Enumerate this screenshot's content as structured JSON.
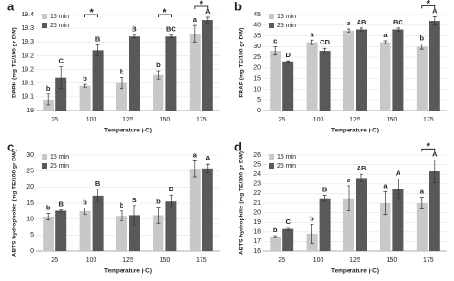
{
  "chart_data": [
    {
      "type": "bar",
      "panel": "a",
      "ylabel": "DPPH (mg TE/100 gr DW)",
      "xlabel": "Temperature (◦C)",
      "categories": [
        "25",
        "100",
        "125",
        "150",
        "175"
      ],
      "ylim": [
        19.0,
        19.35
      ],
      "yticks": [
        19,
        {
          "value": 19.05,
          "label": "19.1"
        },
        {
          "value": 19.1,
          "label": "19.1"
        },
        {
          "value": 19.15,
          "label": "19.2"
        },
        {
          "value": 19.2,
          "label": "19.2"
        },
        {
          "value": 19.25,
          "label": "19.3"
        },
        {
          "value": 19.3,
          "label": "19.3"
        },
        {
          "value": 19.35,
          "label": "19.4"
        }
      ],
      "series": [
        {
          "name": "15 min",
          "color": "#c8c8c8",
          "values": [
            19.04,
            19.09,
            19.1,
            19.13,
            19.28
          ],
          "errors": [
            0.02,
            0.005,
            0.02,
            0.015,
            0.03
          ],
          "letters": [
            "b",
            "b",
            "b",
            "b",
            "a"
          ]
        },
        {
          "name": "25 min",
          "color": "#595959",
          "values": [
            19.12,
            19.22,
            19.27,
            19.27,
            19.33
          ],
          "errors": [
            0.04,
            0.02,
            0.005,
            0.005,
            0.01
          ],
          "letters": [
            "C",
            "B",
            "B",
            "BC",
            "A"
          ]
        }
      ],
      "asterisks": [
        null,
        "*",
        null,
        "*",
        "*"
      ]
    },
    {
      "type": "bar",
      "panel": "b",
      "ylabel": "FRAP (mg TE/100 gr DW)",
      "xlabel": "Temperature (◦C)",
      "categories": [
        "25",
        "100",
        "125",
        "150",
        "175"
      ],
      "ylim": [
        0,
        45
      ],
      "yticks": [
        0,
        5,
        10,
        15,
        20,
        25,
        30,
        35,
        40,
        45
      ],
      "series": [
        {
          "name": "15 min",
          "color": "#c8c8c8",
          "values": [
            28,
            32,
            37.5,
            32,
            30
          ],
          "errors": [
            2,
            1,
            0.7,
            0.7,
            1.2
          ],
          "letters": [
            "c",
            "a",
            "a",
            "a",
            "b"
          ]
        },
        {
          "name": "25 min",
          "color": "#595959",
          "values": [
            23,
            28,
            38,
            38,
            42
          ],
          "errors": [
            0.3,
            1.2,
            0.7,
            0.7,
            2
          ],
          "letters": [
            "D",
            "CD",
            "AB",
            "BC",
            "A"
          ]
        }
      ],
      "asterisks": [
        null,
        null,
        null,
        null,
        "*"
      ]
    },
    {
      "type": "bar",
      "panel": "c",
      "ylabel": "ABTS hydrophobic (mg TE/100 gr DW)",
      "xlabel": "Temperature (◦C)",
      "categories": [
        "25",
        "100",
        "125",
        "150",
        "175"
      ],
      "ylim": [
        0,
        30
      ],
      "yticks": [
        0,
        5,
        10,
        15,
        20,
        25,
        30
      ],
      "series": [
        {
          "name": "15 min",
          "color": "#c8c8c8",
          "values": [
            10.8,
            12.5,
            11,
            11.2,
            25.7
          ],
          "errors": [
            1,
            1,
            1.5,
            2.5,
            2.5
          ],
          "letters": [
            "b",
            "b",
            "b",
            "b",
            "a"
          ]
        },
        {
          "name": "25 min",
          "color": "#595959",
          "values": [
            12.6,
            17.3,
            11.2,
            15.5,
            25.8
          ],
          "errors": [
            0.3,
            2,
            3,
            2,
            1.3
          ],
          "letters": [
            "B",
            "B",
            "B",
            "B",
            "A"
          ]
        }
      ],
      "asterisks": [
        null,
        null,
        null,
        null,
        null
      ]
    },
    {
      "type": "bar",
      "panel": "d",
      "ylabel": "ABTS hydrophilic (mg TE/100 gr DW)",
      "xlabel": "Temperature (◦C)",
      "categories": [
        "25",
        "100",
        "125",
        "150",
        "175"
      ],
      "ylim": [
        16,
        26
      ],
      "yticks": [
        16,
        17,
        18,
        19,
        20,
        21,
        22,
        23,
        24,
        25,
        26
      ],
      "series": [
        {
          "name": "15 min",
          "color": "#c8c8c8",
          "values": [
            17.5,
            17.8,
            21.5,
            21,
            21
          ],
          "errors": [
            0.1,
            1,
            1.3,
            1.2,
            0.6
          ],
          "letters": [
            "b",
            "b",
            "a",
            "a",
            "a"
          ]
        },
        {
          "name": "25 min",
          "color": "#595959",
          "values": [
            18.3,
            21.5,
            23.6,
            22.5,
            24.3
          ],
          "errors": [
            0.15,
            0.3,
            0.4,
            1,
            1.2
          ],
          "letters": [
            "C",
            "B",
            "AB",
            "A",
            "A"
          ]
        }
      ],
      "asterisks": [
        null,
        null,
        null,
        null,
        "*"
      ]
    }
  ]
}
